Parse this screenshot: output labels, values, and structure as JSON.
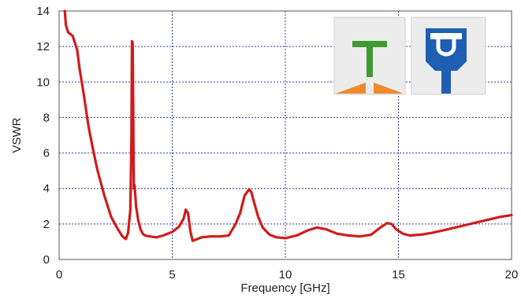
{
  "chart_data": {
    "type": "line",
    "xlabel": "Frequency [GHz]",
    "ylabel": "VSWR",
    "xlim": [
      0,
      20
    ],
    "ylim": [
      0,
      14
    ],
    "xticks": [
      0,
      5,
      10,
      15,
      20
    ],
    "yticks": [
      0,
      2,
      4,
      6,
      8,
      10,
      12,
      14
    ],
    "grid": true,
    "series": [
      {
        "color": "#d01c1c",
        "x": [
          0.25,
          0.3,
          0.4,
          0.6,
          0.8,
          0.9,
          1.1,
          1.3,
          1.5,
          1.7,
          2.0,
          2.3,
          2.6,
          2.8,
          2.95,
          3.05,
          3.15,
          3.2,
          3.22,
          3.25,
          3.28,
          3.3,
          3.33,
          3.36,
          3.4,
          3.5,
          3.6,
          3.7,
          3.8,
          4.0,
          4.3,
          4.6,
          5.0,
          5.3,
          5.5,
          5.6,
          5.7,
          5.8,
          5.9,
          6.0,
          6.3,
          6.7,
          7.1,
          7.5,
          7.8,
          8.0,
          8.2,
          8.4,
          8.5,
          8.6,
          8.8,
          9.0,
          9.3,
          9.6,
          10.0,
          10.5,
          11.0,
          11.4,
          11.8,
          12.3,
          12.8,
          13.3,
          13.8,
          14.2,
          14.5,
          14.7,
          14.9,
          15.2,
          15.5,
          16.0,
          16.5,
          17.0,
          17.5,
          18.0,
          18.5,
          19.0,
          19.5,
          20.0
        ],
        "y": [
          14.0,
          13.2,
          12.8,
          12.6,
          11.8,
          10.8,
          9.2,
          7.5,
          6.2,
          5.0,
          3.6,
          2.4,
          1.7,
          1.3,
          1.15,
          1.5,
          2.8,
          7.0,
          12.3,
          12.2,
          8.0,
          4.0,
          4.2,
          3.8,
          3.0,
          2.2,
          1.7,
          1.45,
          1.35,
          1.3,
          1.25,
          1.35,
          1.55,
          1.85,
          2.3,
          2.8,
          2.6,
          1.6,
          1.05,
          1.1,
          1.25,
          1.3,
          1.3,
          1.35,
          2.0,
          2.6,
          3.6,
          3.95,
          3.8,
          3.3,
          2.4,
          1.8,
          1.4,
          1.25,
          1.2,
          1.35,
          1.65,
          1.8,
          1.7,
          1.45,
          1.35,
          1.3,
          1.4,
          1.8,
          2.05,
          2.0,
          1.7,
          1.45,
          1.35,
          1.4,
          1.5,
          1.65,
          1.8,
          1.95,
          2.1,
          2.25,
          2.4,
          2.5
        ]
      }
    ]
  }
}
